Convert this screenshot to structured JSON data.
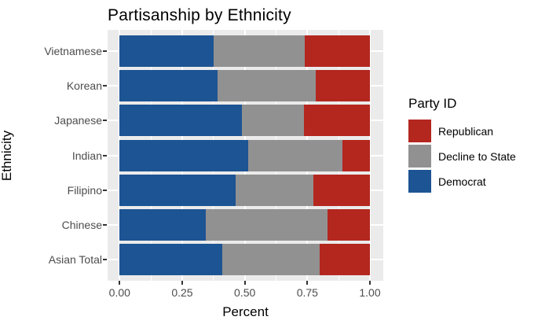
{
  "title": "Partisanship by Ethnicity",
  "chart_data": {
    "type": "bar",
    "orientation": "horizontal",
    "stacked": true,
    "normalized": true,
    "title": "Partisanship by Ethnicity",
    "xlabel": "Percent",
    "ylabel": "Ethnicity",
    "categories": [
      "Vietnamese",
      "Korean",
      "Japanese",
      "Indian",
      "Filipino",
      "Chinese",
      "Asian Total"
    ],
    "x_tick_labels": [
      "0.00",
      "0.25",
      "0.50",
      "0.75",
      "1.00"
    ],
    "x_tick_values": [
      0,
      0.25,
      0.5,
      0.75,
      1
    ],
    "xlim": [
      0,
      1
    ],
    "grid": true,
    "panel_bg": "#EBEBEB",
    "grid_color": "#FFFFFF",
    "series": [
      {
        "name": "Democrat",
        "color": "#1D5493",
        "values": [
          0.375,
          0.39,
          0.49,
          0.515,
          0.465,
          0.345,
          0.41
        ]
      },
      {
        "name": "Decline to State",
        "color": "#919191",
        "values": [
          0.365,
          0.395,
          0.245,
          0.375,
          0.31,
          0.485,
          0.39
        ]
      },
      {
        "name": "Republican",
        "color": "#B3271F",
        "values": [
          0.26,
          0.215,
          0.265,
          0.11,
          0.225,
          0.17,
          0.2
        ]
      }
    ],
    "legend": {
      "title": "Party ID",
      "position": "right",
      "entries": [
        {
          "label": "Republican",
          "color": "#B3271F"
        },
        {
          "label": "Decline to State",
          "color": "#919191"
        },
        {
          "label": "Democrat",
          "color": "#1D5493"
        }
      ]
    }
  }
}
